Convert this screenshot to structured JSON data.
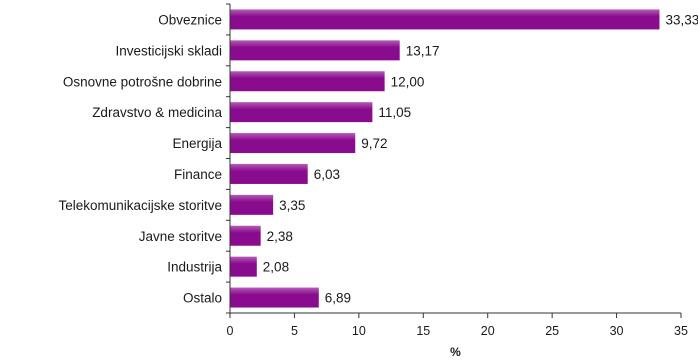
{
  "chart_data": {
    "type": "bar",
    "orientation": "horizontal",
    "categories": [
      "Obveznice",
      "Investicijski skladi",
      "Osnovne potrošne dobrine",
      "Zdravstvo & medicina",
      "Energija",
      "Finance",
      "Telekomunikacijske storitve",
      "Javne storitve",
      "Industrija",
      "Ostalo"
    ],
    "values": [
      33.33,
      13.17,
      12.0,
      11.05,
      9.72,
      6.03,
      3.35,
      2.38,
      2.08,
      6.89
    ],
    "value_labels": [
      "33,33",
      "13,17",
      "12,00",
      "11,05",
      "9,72",
      "6,03",
      "3,35",
      "2,38",
      "2,08",
      "6,89"
    ],
    "xlabel": "%",
    "xlim": [
      0,
      35
    ],
    "xticks": [
      0,
      5,
      10,
      15,
      20,
      25,
      30,
      35
    ],
    "grid": false,
    "bar_color": "#8a0c8e",
    "bar_highlight_color": "#b45cb6"
  }
}
